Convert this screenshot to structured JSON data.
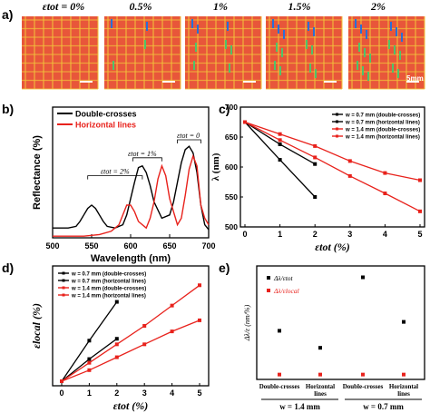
{
  "panels": {
    "a": "a)",
    "b": "b)",
    "c": "c)",
    "d": "d)",
    "e": "e)"
  },
  "panel_a": {
    "strain_labels": [
      "εtot = 0%",
      "0.5%",
      "1%",
      "1.5%",
      "2%"
    ],
    "scale_bar": "5mm",
    "background_color": "#e8563a",
    "grid_color": "#f2c23a",
    "lattice_alignment": [
      0.0,
      0.2,
      0.45,
      0.7,
      0.95
    ]
  },
  "chart_data": [
    {
      "id": "b",
      "type": "line",
      "xlabel": "Wavelength (nm)",
      "ylabel": "Reflectance (%)",
      "xlim": [
        500,
        700
      ],
      "x_ticks": [
        500,
        550,
        600,
        650,
        700
      ],
      "ylim": [
        0,
        80
      ],
      "legend": {
        "placement": "top-left"
      },
      "series": [
        {
          "name": "Double-crosses",
          "color": "#000000",
          "x": [
            500,
            520,
            530,
            535,
            540,
            545,
            550,
            555,
            560,
            565,
            570,
            580,
            590,
            595,
            600,
            605,
            610,
            615,
            620,
            625,
            630,
            640,
            650,
            655,
            660,
            665,
            670,
            675,
            680,
            685,
            690,
            695,
            700
          ],
          "y": [
            6,
            6,
            7,
            10,
            14,
            18,
            20,
            18,
            14,
            10,
            7,
            6,
            8,
            14,
            24,
            34,
            43,
            44,
            40,
            32,
            22,
            12,
            14,
            22,
            34,
            46,
            54,
            56,
            52,
            40,
            20,
            8,
            5
          ]
        },
        {
          "name": "Horizontal lines",
          "color": "#e8221c",
          "x": [
            500,
            540,
            560,
            575,
            585,
            590,
            595,
            600,
            605,
            610,
            620,
            625,
            630,
            635,
            640,
            645,
            650,
            660,
            665,
            670,
            675,
            680,
            685,
            690,
            695,
            700
          ],
          "y": [
            1,
            1,
            2,
            4,
            8,
            14,
            20,
            20,
            16,
            10,
            6,
            12,
            22,
            36,
            44,
            38,
            24,
            8,
            12,
            26,
            42,
            50,
            44,
            20,
            12,
            8
          ]
        }
      ],
      "annotations": [
        "εtot = 2%",
        "εtot = 1%",
        "εtot = 0"
      ]
    },
    {
      "id": "c",
      "type": "line",
      "xlabel": "εtot (%)",
      "ylabel": "λ (nm)",
      "xlim": [
        0,
        5
      ],
      "ylim": [
        500,
        700
      ],
      "x_ticks": [
        0,
        1,
        2,
        3,
        4,
        5
      ],
      "y_ticks": [
        500,
        550,
        600,
        650,
        700
      ],
      "legend": {
        "placement": "top-right"
      },
      "series": [
        {
          "name": "w = 0.7 mm (double-crosses)",
          "color": "#000000",
          "x": [
            0,
            1,
            2
          ],
          "y": [
            675,
            612,
            550
          ]
        },
        {
          "name": "w = 0.7 mm (horizontal lines)",
          "color": "#000000",
          "x": [
            0,
            1,
            2
          ],
          "y": [
            675,
            638,
            605
          ]
        },
        {
          "name": "w = 1.4 mm (double-crosses)",
          "color": "#e8221c",
          "x": [
            0,
            1,
            2,
            3,
            4,
            5
          ],
          "y": [
            675,
            645,
            616,
            585,
            556,
            526
          ]
        },
        {
          "name": "w = 1.4 mm (horizontal lines)",
          "color": "#e8221c",
          "x": [
            0,
            1,
            2,
            3,
            4,
            5
          ],
          "y": [
            675,
            655,
            635,
            610,
            590,
            578
          ]
        }
      ]
    },
    {
      "id": "d",
      "type": "line",
      "xlabel": "εtot (%)",
      "ylabel": "εlocal (%)",
      "xlim": [
        0,
        5
      ],
      "ylim": [
        0,
        60
      ],
      "x_ticks": [
        0,
        1,
        2,
        3,
        4,
        5
      ],
      "legend": {
        "placement": "top-left"
      },
      "series": [
        {
          "name": "w = 0.7 mm (double-crosses)",
          "color": "#000000",
          "x": [
            0,
            1,
            2
          ],
          "y": [
            0,
            22,
            43
          ]
        },
        {
          "name": "w = 0.7 mm (horizontal lines)",
          "color": "#000000",
          "x": [
            0,
            1,
            2
          ],
          "y": [
            0,
            12,
            23
          ]
        },
        {
          "name": "w = 1.4 mm (double-crosses)",
          "color": "#e8221c",
          "x": [
            0,
            1,
            2,
            3,
            4,
            5
          ],
          "y": [
            0,
            10,
            20,
            30,
            41,
            52
          ]
        },
        {
          "name": "w = 1.4 mm (horizontal lines)",
          "color": "#e8221c",
          "x": [
            0,
            1,
            2,
            3,
            4,
            5
          ],
          "y": [
            0,
            6,
            13,
            20,
            27,
            33
          ]
        }
      ]
    },
    {
      "id": "e",
      "type": "scatter",
      "ylabel": "Δλ/ε (nm/%)",
      "ylim": [
        0,
        70
      ],
      "categories": [
        "Double-crosses",
        "Horizontal lines",
        "Double-crosses",
        "Horizontal lines"
      ],
      "groups": [
        "w = 1.4 mm",
        "w = 0.7 mm"
      ],
      "legend": {
        "placement": "top-left"
      },
      "series": [
        {
          "name": "Δλ/εtot",
          "color": "#000000",
          "values": [
            30,
            19.5,
            63,
            35.5
          ]
        },
        {
          "name": "Δλ/εlocal",
          "color": "#e8221c",
          "values": [
            3,
            3,
            3,
            3
          ]
        }
      ]
    }
  ]
}
